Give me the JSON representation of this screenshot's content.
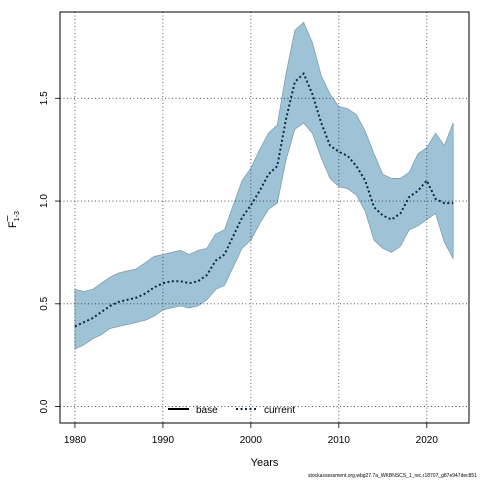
{
  "chart_data": {
    "type": "area",
    "xlabel": "Years",
    "ylabel_main": "F",
    "ylabel_sub": "1-3",
    "xlim": [
      1978.3,
      2024.8
    ],
    "ylim": [
      -0.08,
      1.92
    ],
    "xticks": [
      1980,
      1990,
      2000,
      2010,
      2020
    ],
    "yticks": [
      0.0,
      0.5,
      1.0,
      1.5
    ],
    "ytick_labels": [
      "0.0",
      "0.5",
      "1.0",
      "1.5"
    ],
    "grid": true,
    "legend": {
      "placement": "bottom-center",
      "entries": [
        {
          "label": "base",
          "color": "#000000",
          "style": "solid"
        },
        {
          "label": "current",
          "color": "#0a2a44",
          "style": "dotted"
        }
      ]
    },
    "band_color": "#9ec3d6",
    "x": [
      1980,
      1981,
      1982,
      1983,
      1984,
      1985,
      1986,
      1987,
      1988,
      1989,
      1990,
      1991,
      1992,
      1993,
      1994,
      1995,
      1996,
      1997,
      1998,
      1999,
      2000,
      2001,
      2002,
      2003,
      2004,
      2005,
      2006,
      2007,
      2008,
      2009,
      2010,
      2011,
      2012,
      2013,
      2014,
      2015,
      2016,
      2017,
      2018,
      2019,
      2020,
      2021,
      2022,
      2023
    ],
    "series": [
      {
        "name": "current",
        "values": [
          0.39,
          0.41,
          0.43,
          0.46,
          0.49,
          0.51,
          0.52,
          0.53,
          0.55,
          0.58,
          0.6,
          0.61,
          0.61,
          0.6,
          0.61,
          0.64,
          0.71,
          0.74,
          0.83,
          0.92,
          0.98,
          1.05,
          1.13,
          1.17,
          1.4,
          1.58,
          1.62,
          1.52,
          1.38,
          1.27,
          1.24,
          1.22,
          1.17,
          1.1,
          0.97,
          0.93,
          0.91,
          0.94,
          1.02,
          1.05,
          1.1,
          1.01,
          0.99,
          0.99
        ]
      }
    ],
    "band": {
      "lower": [
        0.28,
        0.3,
        0.33,
        0.35,
        0.38,
        0.39,
        0.4,
        0.41,
        0.42,
        0.44,
        0.47,
        0.48,
        0.49,
        0.48,
        0.49,
        0.52,
        0.57,
        0.59,
        0.68,
        0.77,
        0.81,
        0.89,
        0.96,
        0.99,
        1.2,
        1.35,
        1.38,
        1.33,
        1.21,
        1.11,
        1.07,
        1.06,
        1.03,
        0.95,
        0.81,
        0.77,
        0.75,
        0.78,
        0.86,
        0.88,
        0.91,
        0.94,
        0.8,
        0.72
      ],
      "upper": [
        0.57,
        0.56,
        0.57,
        0.6,
        0.63,
        0.65,
        0.66,
        0.67,
        0.7,
        0.73,
        0.74,
        0.75,
        0.76,
        0.74,
        0.76,
        0.77,
        0.84,
        0.86,
        0.98,
        1.1,
        1.16,
        1.25,
        1.33,
        1.37,
        1.62,
        1.83,
        1.87,
        1.77,
        1.61,
        1.52,
        1.46,
        1.45,
        1.42,
        1.34,
        1.23,
        1.13,
        1.11,
        1.11,
        1.14,
        1.23,
        1.26,
        1.33,
        1.27,
        1.38
      ]
    }
  },
  "footer": {
    "text": "stockassessment.org,wbg27.7a_WKBNSCS_1_rec,r18707_g87e947dec851"
  }
}
